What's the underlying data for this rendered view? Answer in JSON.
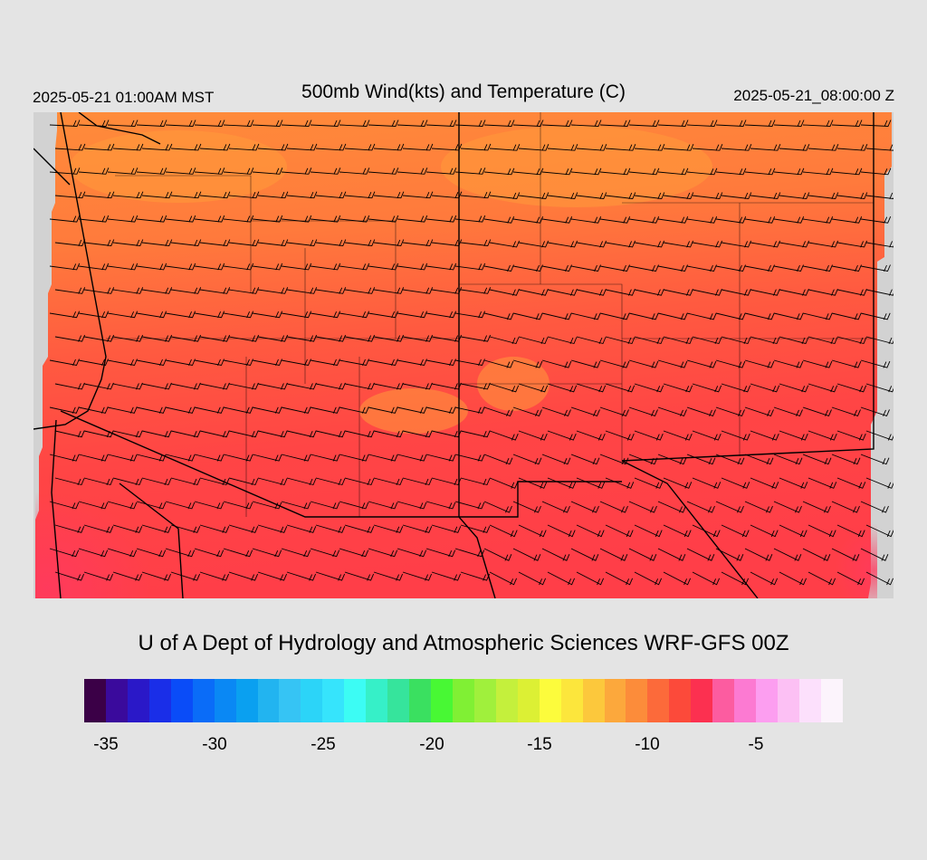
{
  "header": {
    "valid_local": "2025-05-21 01:00AM MST",
    "title": "500mb Wind(kts) and Temperature (C)",
    "valid_utc": "2025-05-21_08:00:00 Z"
  },
  "map": {
    "field": "500mb temperature (C) with wind barbs (kts)",
    "region_colors": {
      "land_outside_domain": "#d2d2d2",
      "north_band": "#ff8c3a",
      "middle_band": "#ff6a3d",
      "south_band": "#ff4545",
      "southwest_band": "#ff3a5a"
    },
    "barb_color": "#000000",
    "boundary_color": "#000000",
    "terrain_contour_color": "#8c6a50"
  },
  "credit": "U of A Dept of Hydrology and Atmospheric Sciences WRF-GFS 00Z",
  "colorbar": {
    "colors": [
      "#3b0047",
      "#3a0a9c",
      "#2a18c8",
      "#1a2ee8",
      "#0a4cf8",
      "#0a6cf8",
      "#0a88f4",
      "#0aa0f0",
      "#22b4f0",
      "#36c4f4",
      "#2cd4f8",
      "#36e4fc",
      "#3cfcf4",
      "#36f0c8",
      "#36e49c",
      "#3ae060",
      "#48f834",
      "#80f034",
      "#a0f03c",
      "#c4f03c",
      "#dcf034",
      "#fcfc3c",
      "#fce63c",
      "#fcc83c",
      "#fca83c",
      "#fc8c3a",
      "#fc6a3a",
      "#fc4a3a",
      "#fc3050",
      "#fc5ca0",
      "#fc7ad2",
      "#fc9ef0",
      "#fcc0f4",
      "#fce0fc",
      "#fcf4fc"
    ],
    "ticks": [
      "-35",
      "-30",
      "-25",
      "-20",
      "-15",
      "-10",
      "-5"
    ]
  }
}
